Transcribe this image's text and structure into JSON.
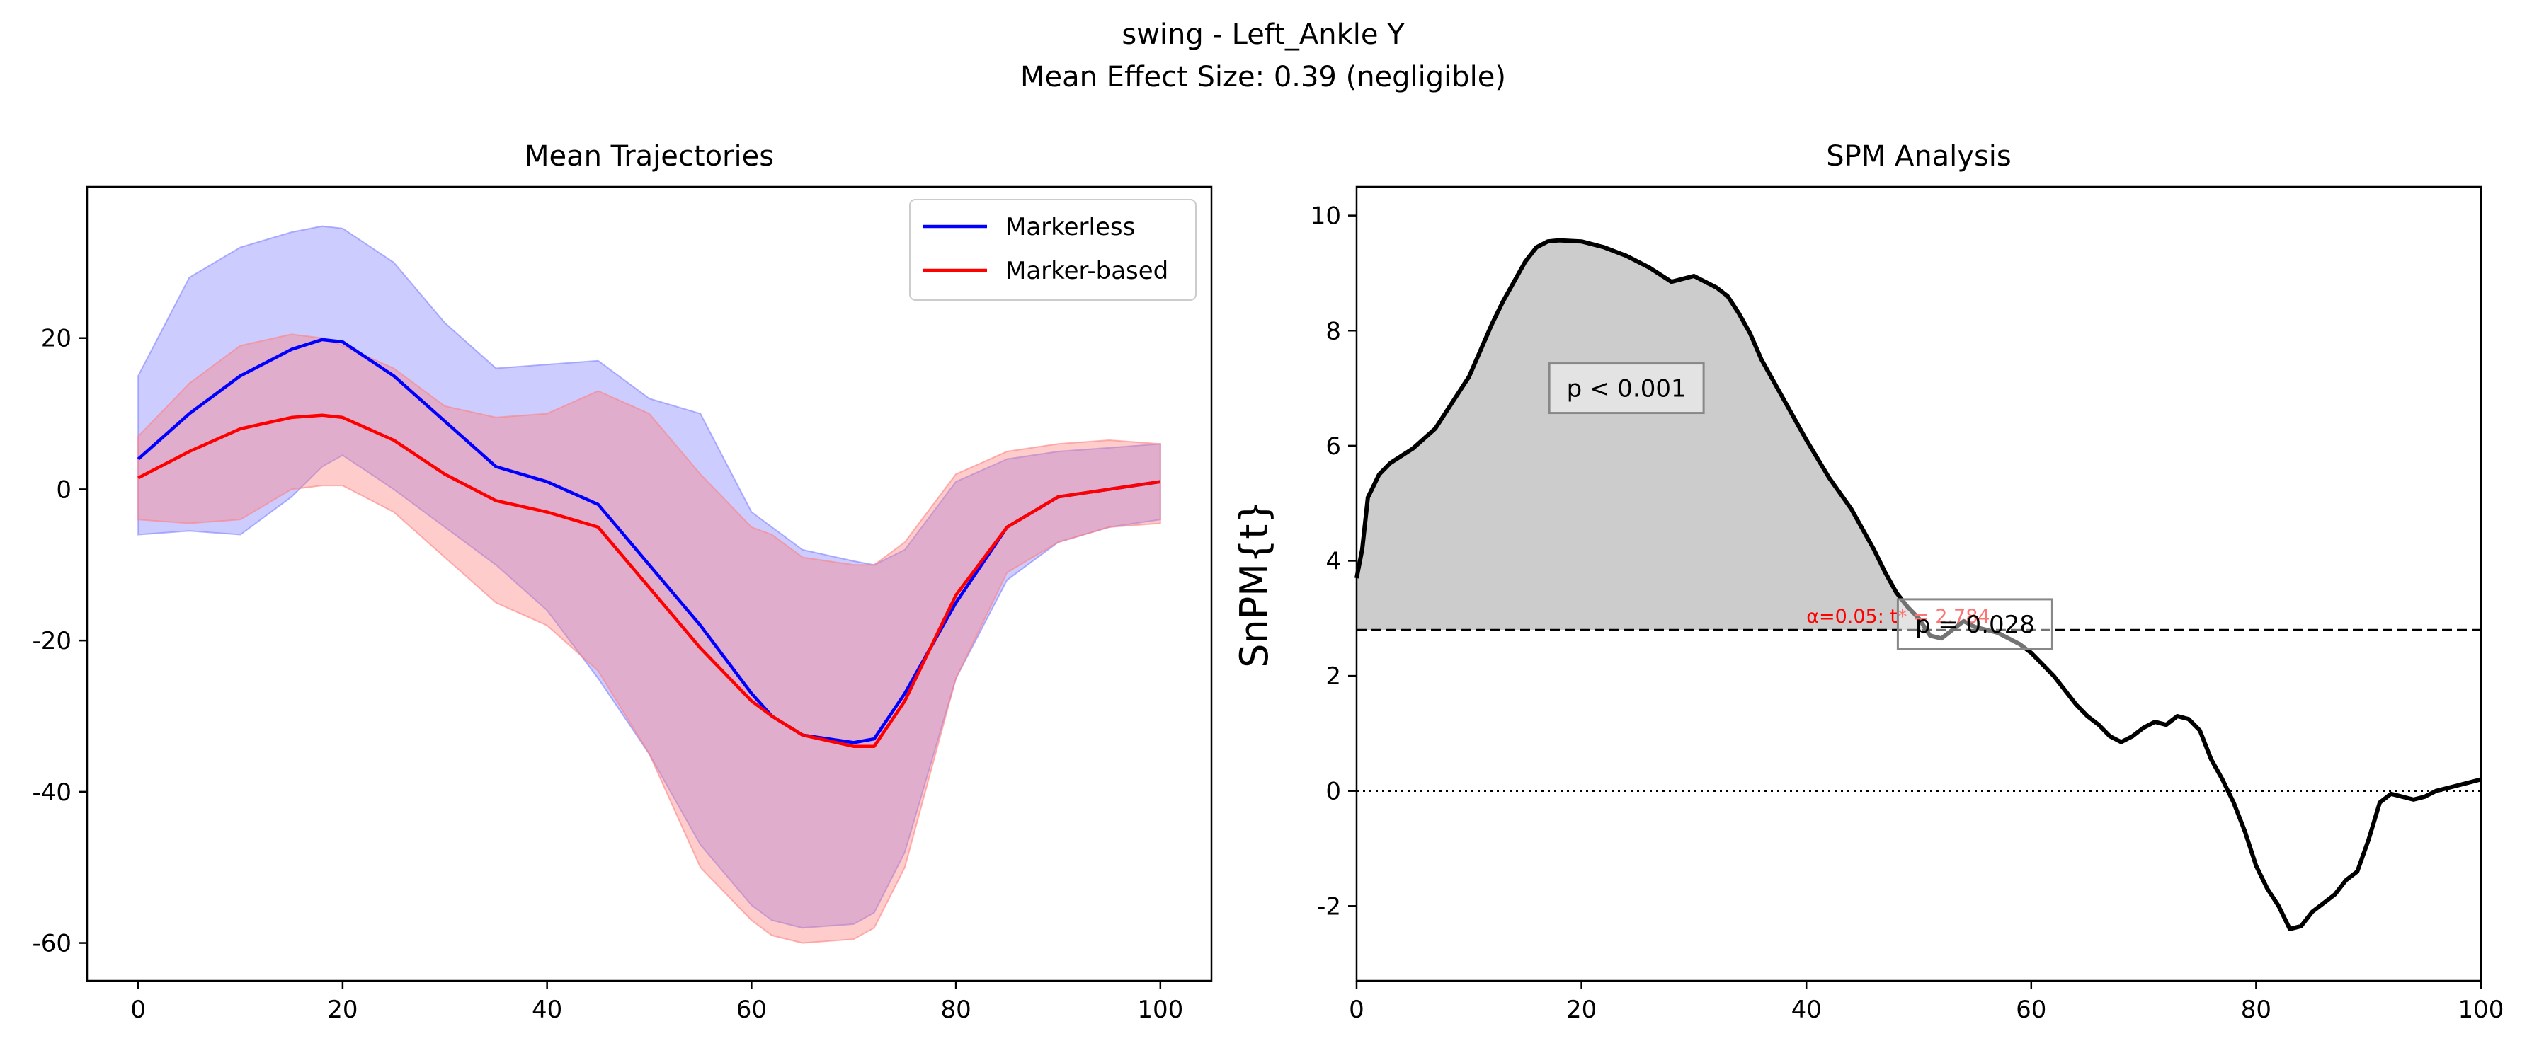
{
  "figure": {
    "title_line1": "swing - Left_Ankle Y",
    "title_line2": "Mean Effect Size: 0.39 (negligible)"
  },
  "chart_data": [
    {
      "type": "line",
      "title": "Mean Trajectories",
      "xlabel": "",
      "ylabel": "",
      "xlim": [
        -5,
        105
      ],
      "ylim": [
        -65,
        40
      ],
      "xticks": [
        0,
        20,
        40,
        60,
        80,
        100
      ],
      "yticks": [
        -60,
        -40,
        -20,
        0,
        20
      ],
      "grid": false,
      "legend_position": "top-right",
      "x": [
        0,
        5,
        10,
        15,
        18,
        20,
        25,
        30,
        35,
        40,
        45,
        50,
        55,
        60,
        62,
        65,
        70,
        72,
        75,
        80,
        85,
        90,
        95,
        100
      ],
      "series": [
        {
          "name": "Markerless",
          "color": "#0000ff",
          "band_color": "#8080ff",
          "mean": [
            4,
            10,
            15,
            18.5,
            19.8,
            19.5,
            15,
            9,
            3,
            1,
            -2,
            -10,
            -18,
            -27,
            -30,
            -32.5,
            -33.5,
            -33,
            -27,
            -15,
            -5,
            -1,
            0,
            1
          ],
          "upper": [
            15,
            28,
            32,
            34,
            34.8,
            34.5,
            30,
            22,
            16,
            16.5,
            17,
            12,
            10,
            -3,
            -5,
            -8,
            -9.5,
            -10,
            -8,
            1,
            4,
            5,
            5.5,
            6
          ],
          "lower": [
            -6,
            -5.5,
            -6,
            -1,
            3,
            4.5,
            0,
            -5,
            -10,
            -16,
            -25,
            -35,
            -47,
            -55,
            -57,
            -58,
            -57.5,
            -56,
            -48,
            -25,
            -12,
            -7,
            -5,
            -4
          ]
        },
        {
          "name": "Marker-based",
          "color": "#ff0000",
          "band_color": "#ff8080",
          "mean": [
            1.5,
            5,
            8,
            9.5,
            9.8,
            9.5,
            6.5,
            2,
            -1.5,
            -3,
            -5,
            -13,
            -21,
            -28,
            -30,
            -32.5,
            -34,
            -34,
            -28,
            -14,
            -5,
            -1,
            0,
            1
          ],
          "upper": [
            7,
            14,
            19,
            20.5,
            20,
            19,
            16,
            11,
            9.5,
            10,
            13,
            10,
            2,
            -5,
            -6,
            -9,
            -10,
            -10,
            -7,
            2,
            5,
            6,
            6.5,
            6
          ],
          "lower": [
            -4,
            -4.5,
            -4,
            0,
            0.5,
            0.5,
            -3,
            -9,
            -15,
            -18,
            -24,
            -35,
            -50,
            -57,
            -59,
            -60,
            -59.5,
            -58,
            -50,
            -25,
            -11,
            -7,
            -5,
            -4.5
          ]
        }
      ]
    },
    {
      "type": "line",
      "title": "SPM Analysis",
      "xlabel": "",
      "ylabel": "SnPM{t}",
      "xlim": [
        0,
        100
      ],
      "ylim": [
        -3.3,
        10.5
      ],
      "xticks": [
        0,
        20,
        40,
        60,
        80,
        100
      ],
      "yticks": [
        -2,
        0,
        2,
        4,
        6,
        8,
        10
      ],
      "grid": false,
      "threshold": 2.8,
      "threshold_label": "α=0.05: t* = 2.784",
      "clusters": [
        {
          "p_label": "p < 0.001",
          "label_x": 24,
          "label_y": 7.0
        },
        {
          "p_label": "p = 0.028",
          "label_x": 55,
          "label_y": 2.9
        }
      ],
      "x": [
        0,
        0.5,
        1,
        2,
        3,
        5,
        7,
        8,
        10,
        12,
        13,
        15,
        16,
        17,
        18,
        20,
        22,
        24,
        26,
        28,
        30,
        32,
        33,
        34,
        35,
        36,
        38,
        40,
        42,
        44,
        46,
        47,
        48,
        49,
        50,
        51,
        52,
        53,
        54,
        55,
        56,
        57,
        58,
        59,
        60,
        62,
        64,
        65,
        66,
        67,
        68,
        69,
        70,
        71,
        72,
        73,
        74,
        75,
        76,
        77,
        78,
        79,
        80,
        81,
        82,
        83,
        84,
        85,
        86,
        87,
        88,
        89,
        90,
        91,
        92,
        93,
        94,
        95,
        96,
        97,
        98,
        99,
        100
      ],
      "y": [
        3.7,
        4.2,
        5.1,
        5.5,
        5.7,
        5.95,
        6.3,
        6.6,
        7.2,
        8.1,
        8.5,
        9.2,
        9.45,
        9.55,
        9.57,
        9.55,
        9.45,
        9.3,
        9.1,
        8.85,
        8.95,
        8.75,
        8.6,
        8.3,
        7.95,
        7.5,
        6.8,
        6.1,
        5.45,
        4.9,
        4.2,
        3.8,
        3.45,
        3.2,
        3.0,
        2.7,
        2.65,
        2.8,
        2.95,
        2.85,
        2.8,
        2.75,
        2.65,
        2.55,
        2.4,
        2.0,
        1.5,
        1.3,
        1.15,
        0.95,
        0.85,
        0.95,
        1.1,
        1.2,
        1.15,
        1.3,
        1.25,
        1.05,
        0.55,
        0.2,
        -0.2,
        -0.7,
        -1.3,
        -1.7,
        -2.0,
        -2.4,
        -2.35,
        -2.1,
        -1.95,
        -1.8,
        -1.55,
        -1.4,
        -0.85,
        -0.2,
        -0.05,
        -0.1,
        -0.15,
        -0.1,
        0.0,
        0.05,
        0.1,
        0.15,
        0.2
      ]
    }
  ]
}
